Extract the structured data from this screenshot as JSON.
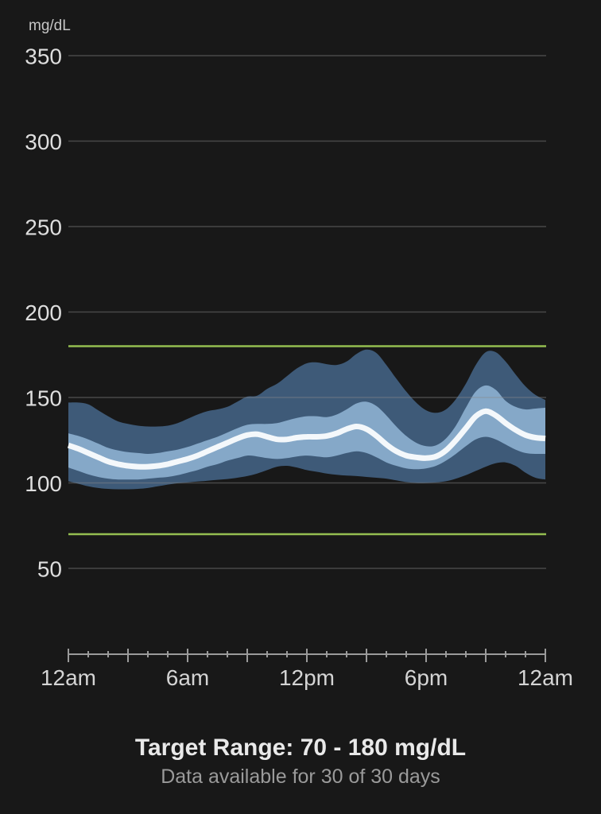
{
  "header": {
    "unit_label": "mg/dL"
  },
  "chart_data": {
    "type": "area",
    "subtype": "ambulatory-glucose-profile-percentile-bands",
    "unit": "mg/dL",
    "y_axis_range": [
      50,
      350
    ],
    "y_gridlines": [
      350,
      300,
      250,
      200,
      150,
      100,
      50
    ],
    "y_tick_labels": [
      "350",
      "300",
      "250",
      "200",
      "150",
      "100",
      "50"
    ],
    "x_range_hours": [
      0,
      24
    ],
    "x_tick_labels": [
      "12am",
      "6am",
      "12pm",
      "6pm",
      "12am"
    ],
    "x_tick_hours": [
      0,
      6,
      12,
      18,
      24
    ],
    "x_minor_tick_interval_hours": 1,
    "x_major_tick_interval_hours": 3,
    "target_range": {
      "low": 70,
      "high": 180
    },
    "hours": [
      0,
      0.5,
      1,
      1.5,
      2,
      2.5,
      3,
      3.5,
      4,
      4.5,
      5,
      5.5,
      6,
      6.5,
      7,
      7.5,
      8,
      8.5,
      9,
      9.5,
      10,
      10.5,
      11,
      11.5,
      12,
      12.5,
      13,
      13.5,
      14,
      14.5,
      15,
      15.5,
      16,
      16.5,
      17,
      17.5,
      18,
      18.5,
      19,
      19.5,
      20,
      20.5,
      21,
      21.5,
      22,
      22.5,
      23,
      23.5,
      24
    ],
    "series": [
      {
        "name": "p95",
        "label": "95th percentile",
        "values": [
          147,
          147,
          146,
          142.5,
          139,
          136,
          134.5,
          133.5,
          133,
          133,
          133.5,
          135,
          137.5,
          140,
          142,
          143,
          144.5,
          147.5,
          150.5,
          151,
          155,
          158,
          162.5,
          167,
          170,
          170.5,
          169.5,
          169,
          171,
          175.5,
          178,
          176,
          169,
          161,
          153.5,
          147,
          142.5,
          141,
          143,
          149,
          158,
          169,
          176.5,
          176.5,
          171,
          163.5,
          156.5,
          151.5,
          148.5
        ]
      },
      {
        "name": "p75",
        "label": "75th percentile",
        "values": [
          129,
          127.5,
          125.5,
          123,
          120.5,
          119,
          118,
          117.5,
          117,
          117.5,
          118.5,
          119.5,
          121,
          123,
          125,
          127,
          129.5,
          132,
          134,
          134.5,
          134.5,
          135,
          136.5,
          138,
          139,
          139,
          138.5,
          140,
          143,
          146.5,
          147.5,
          145,
          139.5,
          133,
          127.5,
          123.5,
          121.5,
          122,
          126,
          133.5,
          144,
          153.5,
          157,
          154.5,
          148,
          144.5,
          143,
          143.5,
          144
        ]
      },
      {
        "name": "median",
        "label": "Median (50th percentile)",
        "values": [
          122,
          120,
          117.5,
          115,
          112.5,
          111,
          110,
          109.5,
          109.5,
          110,
          111,
          112.5,
          114,
          116,
          118.5,
          121,
          123.5,
          126,
          128,
          128.5,
          127,
          125.5,
          125.5,
          126.5,
          127,
          127,
          127.5,
          129,
          131.5,
          133,
          131.5,
          127.5,
          122.5,
          118.5,
          116,
          115,
          114.5,
          115.5,
          119,
          125,
          132,
          139,
          142,
          139.5,
          135,
          131,
          128,
          126.5,
          126
        ]
      },
      {
        "name": "p25",
        "label": "25th percentile",
        "values": [
          109,
          107,
          105,
          103.5,
          102.5,
          102,
          102,
          102,
          102.5,
          103,
          103.5,
          104.5,
          106,
          107.5,
          109.5,
          111,
          113,
          114.5,
          116,
          115.5,
          114.5,
          114,
          114.5,
          115.5,
          116,
          115.5,
          115,
          116,
          117.5,
          118.5,
          117.5,
          115,
          112,
          110,
          108.5,
          108,
          108.5,
          110,
          113,
          117,
          121.5,
          125.5,
          127,
          125.5,
          122.5,
          119.5,
          117.5,
          117,
          117
        ]
      },
      {
        "name": "p5",
        "label": "5th percentile",
        "values": [
          101,
          99.5,
          98,
          97,
          96.5,
          96.3,
          96.3,
          96.5,
          97,
          98,
          99,
          99.8,
          100.3,
          100.8,
          101.3,
          101.8,
          102.3,
          103,
          104,
          105.5,
          107.5,
          109.5,
          110,
          109,
          107.5,
          106.5,
          105.5,
          104.8,
          104.3,
          104,
          103.5,
          103,
          102.5,
          101.5,
          100.5,
          100,
          100,
          100.3,
          101,
          102.5,
          104.5,
          107,
          109.5,
          111.5,
          112,
          110,
          106,
          103,
          102
        ]
      }
    ],
    "colors": {
      "band_outer": "#3E5A78",
      "band_inner": "#85A8C8",
      "median": "#F4F8FB",
      "target_line": "#94BE50",
      "gridline": "#8A8A8A",
      "axis": "#9A9A9A",
      "background": "#181818"
    }
  },
  "footer": {
    "title": "Target Range: 70 - 180 mg/dL",
    "subtitle": "Data available for 30 of 30 days"
  }
}
